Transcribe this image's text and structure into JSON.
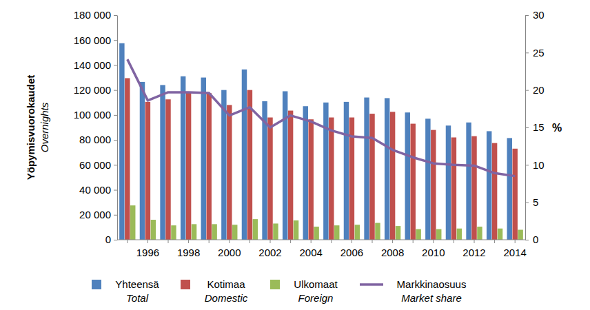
{
  "chart_data": {
    "type": "bar",
    "categories": [
      null,
      1996,
      null,
      1998,
      null,
      2000,
      null,
      2002,
      null,
      2004,
      null,
      2006,
      null,
      2008,
      null,
      2010,
      null,
      2012,
      null,
      2014
    ],
    "series": [
      {
        "name": "Yhteensä",
        "name_en": "Total",
        "color": "#4f81bd",
        "type": "bar",
        "values": [
          157500,
          126500,
          124000,
          131000,
          130000,
          120000,
          136500,
          111000,
          119000,
          107000,
          110000,
          110500,
          114000,
          113500,
          102000,
          97000,
          91500,
          94000,
          87000,
          81500
        ]
      },
      {
        "name": "Kotimaa",
        "name_en": "Domestic",
        "color": "#c0504d",
        "type": "bar",
        "values": [
          129500,
          110500,
          112500,
          118500,
          117500,
          108000,
          120000,
          98000,
          103500,
          96500,
          98000,
          98000,
          101000,
          102500,
          93000,
          88000,
          82000,
          83000,
          77500,
          73000
        ]
      },
      {
        "name": "Ulkomaat",
        "name_en": "Foreign",
        "color": "#9bbb59",
        "type": "bar",
        "values": [
          27500,
          16000,
          11500,
          12500,
          12500,
          12000,
          16500,
          13000,
          15500,
          10500,
          11500,
          12000,
          13500,
          11000,
          8500,
          8500,
          9000,
          10500,
          9000,
          8000
        ]
      },
      {
        "name": "Markkinaosuus",
        "name_en": "Market share",
        "color": "#8064a2",
        "type": "line",
        "axis": "y2",
        "values": [
          24.1,
          18.6,
          19.7,
          19.7,
          19.6,
          16.6,
          17.7,
          15.0,
          16.6,
          15.8,
          14.6,
          13.8,
          13.6,
          12.0,
          11.0,
          10.2,
          10.0,
          9.9,
          8.9,
          8.5
        ]
      }
    ],
    "ylabel": [
      "Yöpymisvuorokaudet",
      "Overnights"
    ],
    "y2label": "%",
    "ylim": [
      0,
      180000
    ],
    "yticks": [
      0,
      {
        "value": 20000,
        "label": "20 000"
      },
      {
        "value": 40000,
        "label": "40 000"
      },
      {
        "value": 60000,
        "label": "60 000"
      },
      {
        "value": 80000,
        "label": "80 000"
      },
      {
        "value": 100000,
        "label": "100 000"
      },
      {
        "value": 120000,
        "label": "120 000"
      },
      {
        "value": 140000,
        "label": "140 000"
      },
      {
        "value": 160000,
        "label": "160 000"
      },
      {
        "value": 180000,
        "label": "180 000"
      }
    ],
    "y2lim": [
      0,
      30
    ],
    "y2ticks": [
      0,
      5,
      10,
      15,
      20,
      25,
      30
    ],
    "grid": false,
    "legend": "bottom"
  }
}
